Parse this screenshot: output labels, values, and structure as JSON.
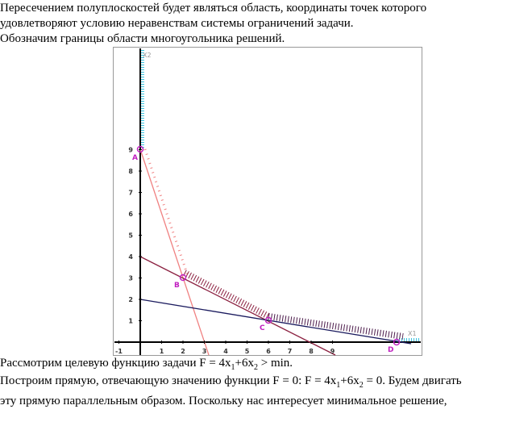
{
  "top": [
    "Пересечением полуплоскостей будет являться область, координаты точек которого",
    "удовлетворяют условию неравенствам системы ограничений задачи.",
    "Обозначим границы области многоугольника решений."
  ],
  "figure": {
    "x_axis_label": "X1",
    "y_axis_label": "X2",
    "xticks": [
      -1,
      1,
      2,
      3,
      4,
      5,
      6,
      7,
      8,
      9
    ],
    "yticks": [
      1,
      2,
      3,
      4,
      5,
      6,
      7,
      8,
      9
    ],
    "points": [
      "A",
      "B",
      "C",
      "D"
    ]
  },
  "bottom": [
    {
      "parts": [
        "Рассмотрим целевую функцию задачи F = 4x",
        "1",
        "+6x",
        "2",
        " >   min."
      ]
    },
    {
      "parts": [
        "Построим прямую, отвечающую значению функции F = 0: F = 4x",
        "1",
        "+6x",
        "2",
        " = 0. Будем двигать"
      ]
    },
    {
      "parts": [
        "эту прямую параллельным образом. Поскольку нас интересует минимальное решение,"
      ]
    }
  ]
}
